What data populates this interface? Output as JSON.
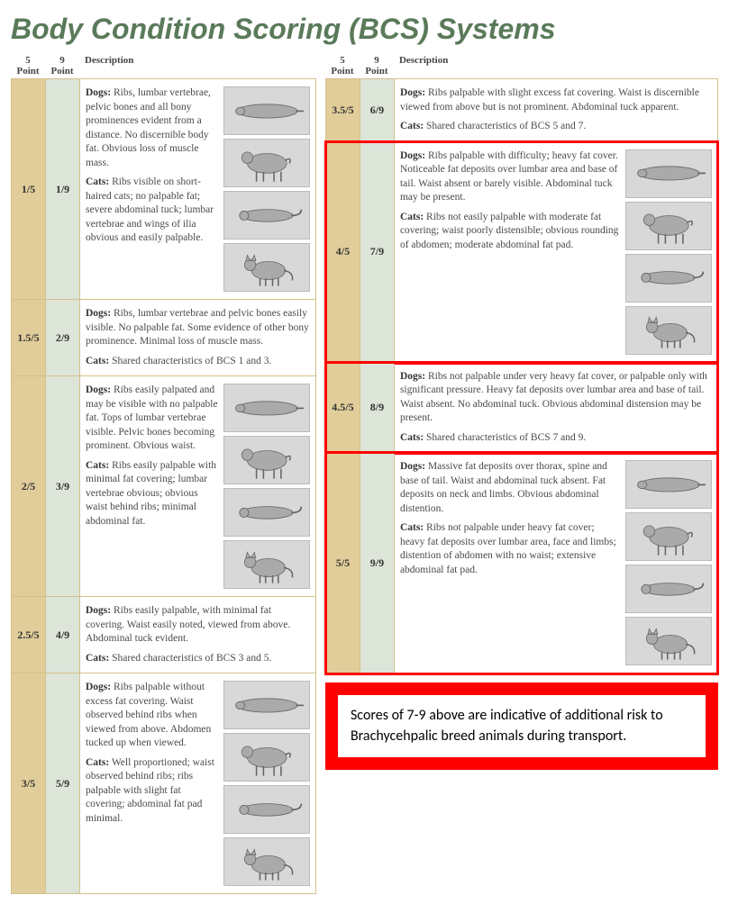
{
  "title": "Body Condition Scoring (BCS) Systems",
  "header": {
    "col5": "5\nPoint",
    "col9": "9\nPoint",
    "desc": "Description"
  },
  "colors": {
    "title": "#5a7a5a",
    "col5_bg": "#e0cd9a",
    "col9_bg": "#dde4d8",
    "border": "#d4c08a",
    "highlight": "#ff0000",
    "img_bg": "#d8d8d8"
  },
  "left": [
    {
      "p5": "1/5",
      "p9": "1/9",
      "images": true,
      "dogs": "Ribs, lumbar vertebrae, pelvic bones and all bony prominences evident from a distance. No discernible body fat. Obvious loss of muscle mass.",
      "cats": "Ribs visible on short-haired cats; no palpable fat; severe abdominal tuck; lumbar vertebrae and wings of ilia obvious and easily palpable."
    },
    {
      "p5": "1.5/5",
      "p9": "2/9",
      "images": false,
      "dogs": "Ribs, lumbar vertebrae and pelvic bones easily visible. No palpable fat. Some evidence of other bony prominence. Minimal loss of muscle mass.",
      "cats": "Shared characteristics of BCS 1 and 3."
    },
    {
      "p5": "2/5",
      "p9": "3/9",
      "images": true,
      "dogs": "Ribs easily palpated and may be visible with no palpable fat. Tops of lumbar vertebrae visible. Pelvic bones becoming prominent. Obvious waist.",
      "cats": "Ribs easily palpable with minimal fat covering; lumbar vertebrae obvious; obvious waist behind ribs; minimal abdominal fat."
    },
    {
      "p5": "2.5/5",
      "p9": "4/9",
      "images": false,
      "dogs": "Ribs easily palpable, with minimal fat covering. Waist easily noted, viewed from above. Abdominal tuck evident.",
      "cats": "Shared characteristics of BCS 3 and 5."
    },
    {
      "p5": "3/5",
      "p9": "5/9",
      "images": true,
      "dogs": "Ribs palpable without excess fat covering. Waist observed behind ribs when viewed from above. Abdomen tucked up when viewed.",
      "cats": "Well proportioned; waist observed behind ribs; ribs palpable with slight fat covering; abdominal fat pad minimal."
    }
  ],
  "right": [
    {
      "p5": "3.5/5",
      "p9": "6/9",
      "images": false,
      "highlight": false,
      "dogs": "Ribs palpable with slight excess fat covering. Waist is discernible viewed from above but is not prominent. Abdominal tuck apparent.",
      "cats": "Shared characteristics of BCS 5 and 7."
    },
    {
      "p5": "4/5",
      "p9": "7/9",
      "images": true,
      "highlight": true,
      "dogs": "Ribs palpable with difficulty; heavy fat cover. Noticeable fat deposits over lumbar area and base of tail. Waist absent or barely visible. Abdominal tuck may be present.",
      "cats": "Ribs not easily palpable with moderate fat covering; waist poorly distensible; obvious rounding of abdomen; moderate abdominal fat pad."
    },
    {
      "p5": "4.5/5",
      "p9": "8/9",
      "images": false,
      "highlight": true,
      "dogs": "Ribs not palpable under very heavy fat cover, or palpable only with significant pressure. Heavy fat deposits over lumbar area and base of tail. Waist absent. No abdominal tuck. Obvious abdominal distension may be present.",
      "cats": "Shared characteristics of BCS 7 and 9."
    },
    {
      "p5": "5/5",
      "p9": "9/9",
      "images": true,
      "highlight": true,
      "dogs": "Massive fat deposits over thorax, spine and base of tail. Waist and abdominal tuck absent. Fat deposits on neck and limbs. Obvious abdominal distention.",
      "cats": "Ribs not palpable under heavy fat cover; heavy fat deposits over lumbar area, face and limbs; distention of abdomen with no waist; extensive abdominal fat pad."
    }
  ],
  "warning": "Scores of 7-9 above are indicative of additional risk to Brachycehpalic breed animals during transport."
}
